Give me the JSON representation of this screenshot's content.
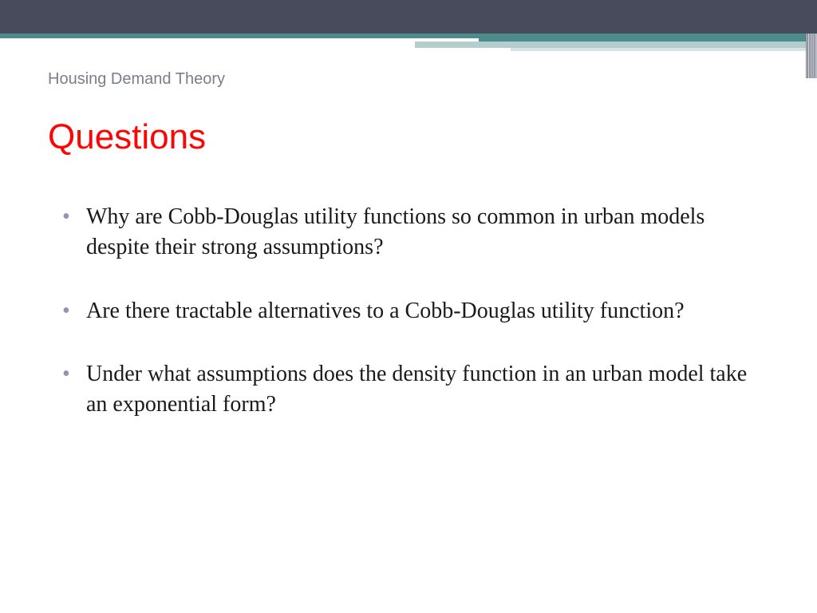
{
  "theme": {
    "top_band_color": "#474b5b",
    "accent_teal": "#4d8a8a",
    "accent_light": "#b3cccc",
    "accent_light2": "#d6e3e3",
    "background": "#ffffff",
    "breadcrumb_color": "#7a7e8a",
    "heading_color": "#fc0505",
    "body_text_color": "#1a1a1a",
    "bullet_marker_color": "#9a8fb0",
    "breadcrumb_fontsize": 20,
    "heading_fontsize": 44,
    "body_fontsize": 28,
    "heading_font": "Segoe UI",
    "body_font": "Georgia"
  },
  "breadcrumb": "Housing Demand Theory",
  "heading": "Questions",
  "bullets": [
    "Why are Cobb-Douglas utility functions so common in urban models despite their strong assumptions?",
    "Are there tractable alternatives to a Cobb-Douglas utility function?",
    "Under what assumptions does the density function in an urban model take an exponential form?"
  ]
}
